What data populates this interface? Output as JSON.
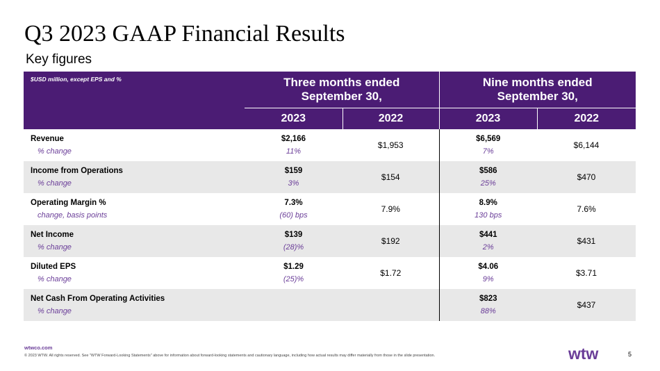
{
  "title": "Q3 2023 GAAP Financial Results",
  "subtitle": "Key figures",
  "table": {
    "unit_note": "$USD million,  except EPS and %",
    "group_headers": [
      "Three months ended September 30,",
      "Nine months ended September 30,"
    ],
    "years": [
      "2023",
      "2022",
      "2023",
      "2022"
    ],
    "rows": [
      {
        "label": "Revenue",
        "sub_label": "% change",
        "q_2023": "$2,166",
        "q_change": "11%",
        "q_2022": "$1,953",
        "n_2023": "$6,569",
        "n_change": "7%",
        "n_2022": "$6,144"
      },
      {
        "label": "Income from Operations",
        "sub_label": "% change",
        "q_2023": "$159",
        "q_change": "3%",
        "q_2022": "$154",
        "n_2023": "$586",
        "n_change": "25%",
        "n_2022": "$470"
      },
      {
        "label": "Operating Margin %",
        "sub_label": "change, basis points",
        "q_2023": "7.3%",
        "q_change": "(60) bps",
        "q_2022": "7.9%",
        "n_2023": "8.9%",
        "n_change": "130 bps",
        "n_2022": "7.6%"
      },
      {
        "label": "Net Income",
        "sub_label": "% change",
        "q_2023": "$139",
        "q_change": "(28)%",
        "q_2022": "$192",
        "n_2023": "$441",
        "n_change": "2%",
        "n_2022": "$431"
      },
      {
        "label": "Diluted EPS",
        "sub_label": "% change",
        "q_2023": "$1.29",
        "q_change": "(25)%",
        "q_2022": "$1.72",
        "n_2023": "$4.06",
        "n_change": "9%",
        "n_2022": "$3.71"
      },
      {
        "label": "Net Cash From Operating Activities",
        "sub_label": "% change",
        "q_2023": "",
        "q_change": "",
        "q_2022": "",
        "n_2023": "$823",
        "n_change": "88%",
        "n_2022": "$437"
      }
    ]
  },
  "footer": {
    "url": "wtwco.com",
    "note": "© 2023 WTW. All rights reserved. See \"WTW Forward-Looking Statements\" above for information about forward-looking statements and cautionary language, including how actual results may differ materially from those in the slide presentation.",
    "logo_text": "wtw",
    "page_number": "5"
  },
  "colors": {
    "header_bg": "#4b1c74",
    "accent_purple": "#6a3d98",
    "shade": "#e8e8e8"
  }
}
